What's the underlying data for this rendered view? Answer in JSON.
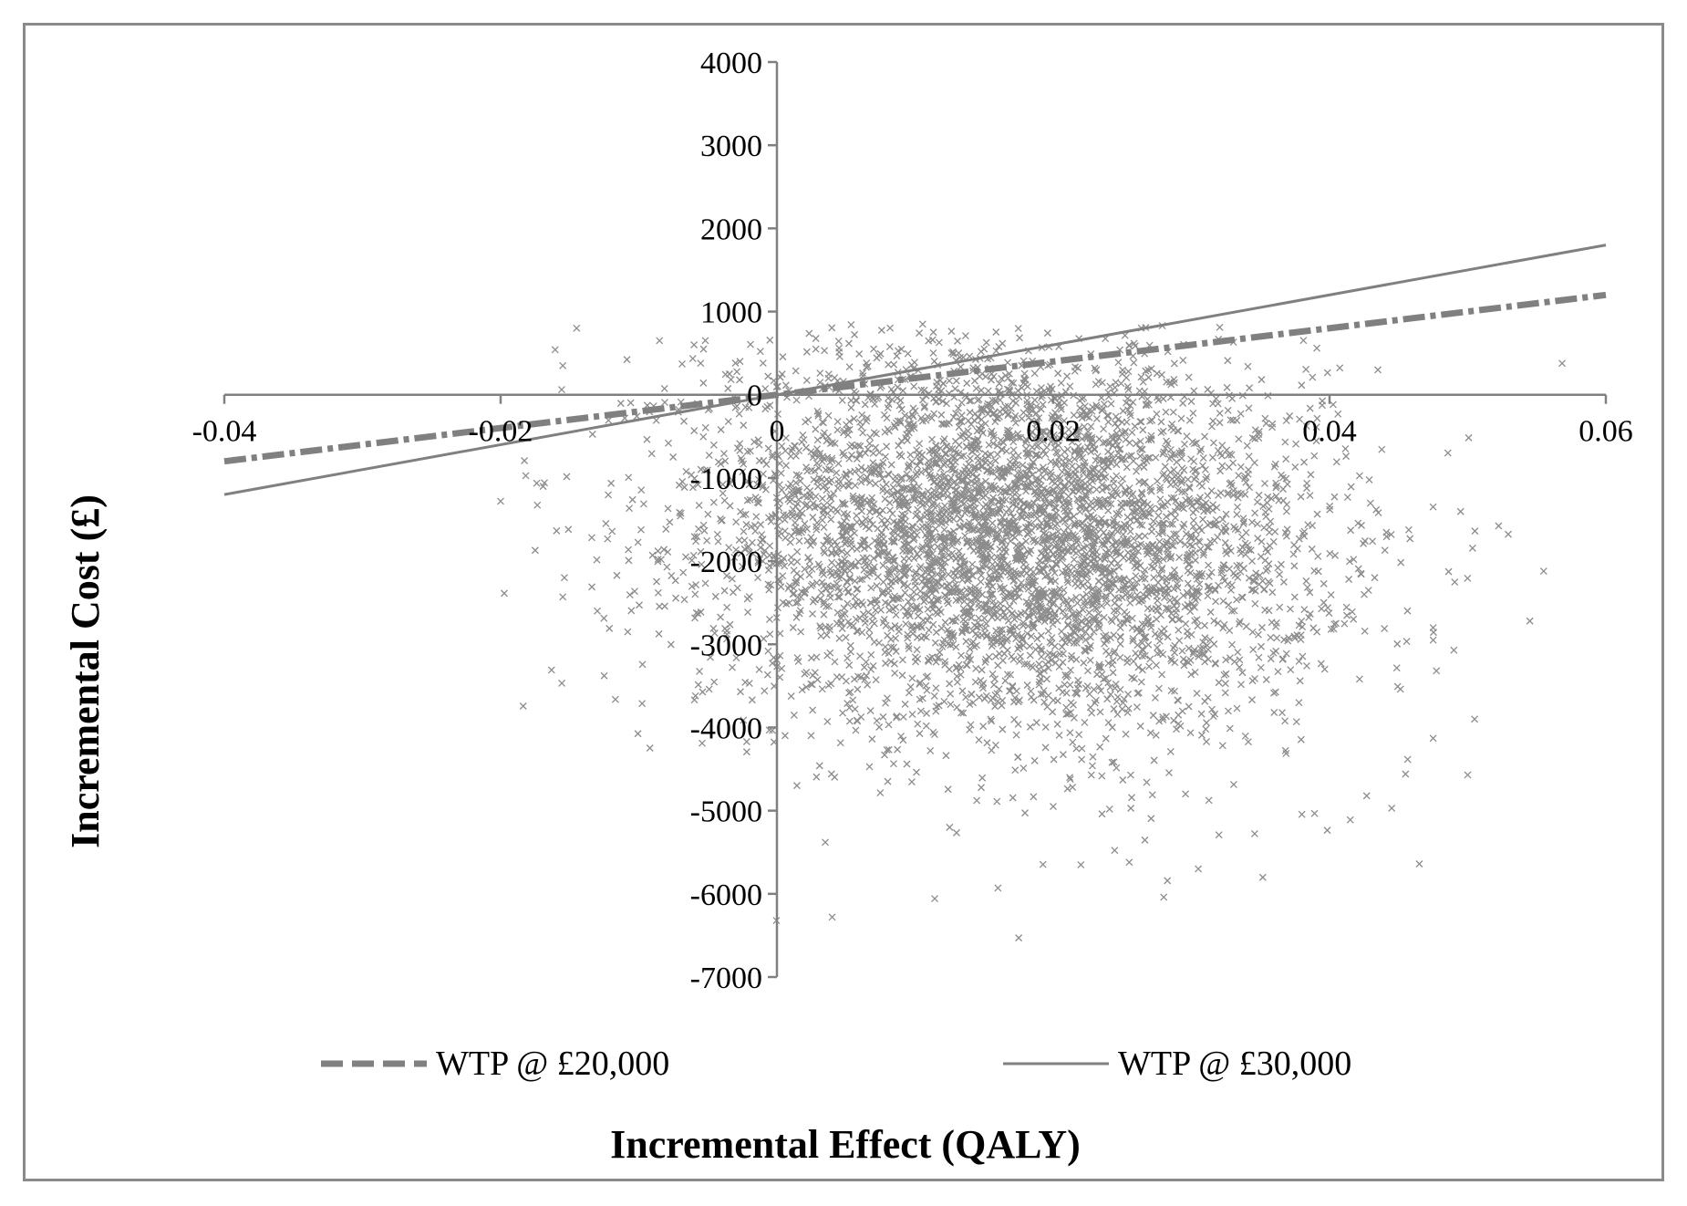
{
  "chart_data": {
    "type": "scatter",
    "title": "",
    "xlabel": "Incremental Effect (QALY)",
    "ylabel": "Incremental Cost (£)",
    "xlim": [
      -0.04,
      0.06
    ],
    "ylim": [
      -7000,
      4000
    ],
    "x_ticks": [
      -0.04,
      -0.02,
      0,
      0.02,
      0.04,
      0.06
    ],
    "x_tick_labels": [
      "-0.04",
      "-0.02",
      "0",
      "0.02",
      "0.04",
      "0.06"
    ],
    "y_ticks": [
      4000,
      3000,
      2000,
      1000,
      0,
      -1000,
      -2000,
      -3000,
      -4000,
      -5000,
      -6000,
      -7000
    ],
    "y_tick_labels": [
      "4000",
      "3000",
      "2000",
      "1000",
      "0",
      "-1000",
      "-2000",
      "-3000",
      "-4000",
      "-5000",
      "-6000",
      "-7000"
    ],
    "grid": false,
    "legend_position": "bottom",
    "colors": {
      "points": "#8c8c8c",
      "lines": "#808080",
      "axes": "#808080"
    },
    "lines": [
      {
        "name": "WTP @ £20,000",
        "style": "dashed",
        "slope": 20000,
        "x": [
          -0.04,
          0.06
        ],
        "y": [
          -800,
          1200
        ]
      },
      {
        "name": "WTP @ £30,000",
        "style": "solid",
        "slope": 30000,
        "x": [
          -0.04,
          0.06
        ],
        "y": [
          -1200,
          1800
        ]
      }
    ],
    "scatter_distribution": {
      "marker": "x",
      "n_points": 5000,
      "x_mean": 0.017,
      "x_sd": 0.011,
      "y_mean": -1700,
      "y_sd": 1150,
      "correlation": -0.1
    },
    "scatter_outliers": [
      {
        "x": -0.0145,
        "y": 800
      },
      {
        "x": -0.0155,
        "y": 350
      },
      {
        "x": -0.02,
        "y": -1280
      },
      {
        "x": -0.0175,
        "y": -1870
      },
      {
        "x": -0.0155,
        "y": -2430
      },
      {
        "x": -0.013,
        "y": -2600
      },
      {
        "x": -0.0108,
        "y": -2850
      },
      {
        "x": -0.0085,
        "y": 650
      },
      {
        "x": -0.006,
        "y": 600
      },
      {
        "x": 0.004,
        "y": -6280
      },
      {
        "x": 0.0175,
        "y": -6530
      },
      {
        "x": 0.028,
        "y": -6040
      },
      {
        "x": 0.016,
        "y": -5930
      },
      {
        "x": 0.0035,
        "y": -5380
      },
      {
        "x": 0.0465,
        "y": -5640
      },
      {
        "x": 0.0555,
        "y": -2120
      },
      {
        "x": 0.0545,
        "y": -2720
      },
      {
        "x": 0.0505,
        "y": -3900
      },
      {
        "x": 0.05,
        "y": -4570
      },
      {
        "x": 0.0475,
        "y": -2800
      },
      {
        "x": 0.0435,
        "y": 300
      },
      {
        "x": 0.0455,
        "y": -4560
      },
      {
        "x": 0.02,
        "y": -4950
      },
      {
        "x": 0.022,
        "y": -5650
      },
      {
        "x": 0.0255,
        "y": -5620
      },
      {
        "x": 0.0305,
        "y": -5700
      },
      {
        "x": 0.0125,
        "y": -5200
      },
      {
        "x": 0.015,
        "y": 550
      },
      {
        "x": 0.007,
        "y": 550
      },
      {
        "x": 0.0045,
        "y": 560
      },
      {
        "x": 0.025,
        "y": 250
      },
      {
        "x": -0.001,
        "y": 380
      },
      {
        "x": 0.03,
        "y": -80
      },
      {
        "x": 0.0475,
        "y": -4130
      },
      {
        "x": 0.049,
        "y": -3070
      },
      {
        "x": 0.0415,
        "y": -5110
      },
      {
        "x": 0.0475,
        "y": -2950
      },
      {
        "x": 0.0445,
        "y": -4970
      }
    ]
  }
}
